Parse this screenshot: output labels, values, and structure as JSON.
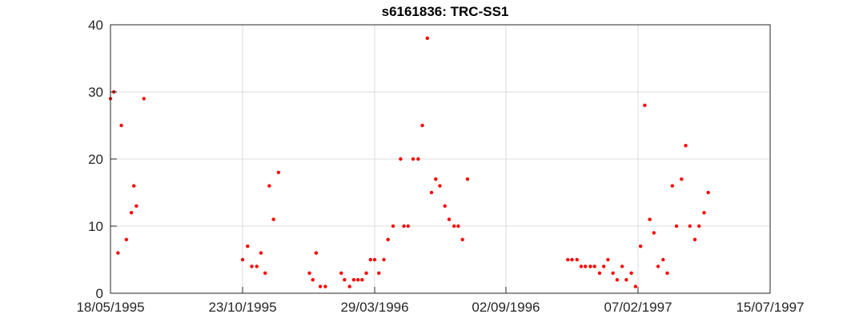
{
  "chart_data": {
    "type": "scatter",
    "title": "s6161836: TRC-SS1",
    "xlabel": "",
    "ylabel": "",
    "x_range": [
      "18/05/1995",
      "15/07/1997"
    ],
    "ylim": [
      0,
      40
    ],
    "grid": true,
    "x_ticks": [
      "18/05/1995",
      "23/10/1995",
      "29/03/1996",
      "02/09/1996",
      "07/02/1997",
      "15/07/1997"
    ],
    "y_ticks": [
      0,
      10,
      20,
      30,
      40
    ],
    "marker_color": "#ff0000",
    "points": [
      {
        "x": "18/05/1995",
        "y": 29
      },
      {
        "x": "22/05/1995",
        "y": 30
      },
      {
        "x": "27/05/1995",
        "y": 6
      },
      {
        "x": "31/05/1995",
        "y": 25
      },
      {
        "x": "06/06/1995",
        "y": 8
      },
      {
        "x": "12/06/1995",
        "y": 12
      },
      {
        "x": "15/06/1995",
        "y": 16
      },
      {
        "x": "18/06/1995",
        "y": 13
      },
      {
        "x": "27/06/1995",
        "y": 29
      },
      {
        "x": "23/10/1995",
        "y": 5
      },
      {
        "x": "29/10/1995",
        "y": 7
      },
      {
        "x": "03/11/1995",
        "y": 4
      },
      {
        "x": "09/11/1995",
        "y": 4
      },
      {
        "x": "14/11/1995",
        "y": 6
      },
      {
        "x": "19/11/1995",
        "y": 3
      },
      {
        "x": "24/11/1995",
        "y": 16
      },
      {
        "x": "29/11/1995",
        "y": 11
      },
      {
        "x": "05/12/1995",
        "y": 18
      },
      {
        "x": "11/01/1996",
        "y": 3
      },
      {
        "x": "15/01/1996",
        "y": 2
      },
      {
        "x": "19/01/1996",
        "y": 6
      },
      {
        "x": "24/01/1996",
        "y": 1
      },
      {
        "x": "30/01/1996",
        "y": 1
      },
      {
        "x": "18/02/1996",
        "y": 3
      },
      {
        "x": "22/02/1996",
        "y": 2
      },
      {
        "x": "28/02/1996",
        "y": 1
      },
      {
        "x": "04/03/1996",
        "y": 2
      },
      {
        "x": "09/03/1996",
        "y": 2
      },
      {
        "x": "14/03/1996",
        "y": 2
      },
      {
        "x": "19/03/1996",
        "y": 3
      },
      {
        "x": "24/03/1996",
        "y": 5
      },
      {
        "x": "29/03/1996",
        "y": 5
      },
      {
        "x": "03/04/1996",
        "y": 3
      },
      {
        "x": "09/04/1996",
        "y": 5
      },
      {
        "x": "14/04/1996",
        "y": 8
      },
      {
        "x": "20/04/1996",
        "y": 10
      },
      {
        "x": "29/04/1996",
        "y": 20
      },
      {
        "x": "03/05/1996",
        "y": 10
      },
      {
        "x": "08/05/1996",
        "y": 10
      },
      {
        "x": "14/05/1996",
        "y": 20
      },
      {
        "x": "20/05/1996",
        "y": 20
      },
      {
        "x": "25/05/1996",
        "y": 25
      },
      {
        "x": "31/05/1996",
        "y": 38
      },
      {
        "x": "05/06/1996",
        "y": 15
      },
      {
        "x": "10/06/1996",
        "y": 17
      },
      {
        "x": "15/06/1996",
        "y": 16
      },
      {
        "x": "21/06/1996",
        "y": 13
      },
      {
        "x": "26/06/1996",
        "y": 11
      },
      {
        "x": "02/07/1996",
        "y": 10
      },
      {
        "x": "07/07/1996",
        "y": 10
      },
      {
        "x": "12/07/1996",
        "y": 8
      },
      {
        "x": "18/07/1996",
        "y": 17
      },
      {
        "x": "15/11/1996",
        "y": 5
      },
      {
        "x": "20/11/1996",
        "y": 5
      },
      {
        "x": "26/11/1996",
        "y": 5
      },
      {
        "x": "01/12/1996",
        "y": 4
      },
      {
        "x": "06/12/1996",
        "y": 4
      },
      {
        "x": "12/12/1996",
        "y": 4
      },
      {
        "x": "17/12/1996",
        "y": 4
      },
      {
        "x": "23/12/1996",
        "y": 3
      },
      {
        "x": "28/12/1996",
        "y": 4
      },
      {
        "x": "02/01/1997",
        "y": 5
      },
      {
        "x": "08/01/1997",
        "y": 3
      },
      {
        "x": "13/01/1997",
        "y": 2
      },
      {
        "x": "19/01/1997",
        "y": 4
      },
      {
        "x": "24/01/1997",
        "y": 2
      },
      {
        "x": "30/01/1997",
        "y": 3
      },
      {
        "x": "04/02/1997",
        "y": 1
      },
      {
        "x": "10/02/1997",
        "y": 7
      },
      {
        "x": "15/02/1997",
        "y": 28
      },
      {
        "x": "21/02/1997",
        "y": 11
      },
      {
        "x": "26/02/1997",
        "y": 9
      },
      {
        "x": "03/03/1997",
        "y": 4
      },
      {
        "x": "09/03/1997",
        "y": 5
      },
      {
        "x": "14/03/1997",
        "y": 3
      },
      {
        "x": "20/03/1997",
        "y": 16
      },
      {
        "x": "25/03/1997",
        "y": 10
      },
      {
        "x": "31/03/1997",
        "y": 17
      },
      {
        "x": "05/04/1997",
        "y": 22
      },
      {
        "x": "10/04/1997",
        "y": 10
      },
      {
        "x": "16/04/1997",
        "y": 8
      },
      {
        "x": "21/04/1997",
        "y": 10
      },
      {
        "x": "27/04/1997",
        "y": 12
      },
      {
        "x": "02/05/1997",
        "y": 15
      }
    ]
  }
}
